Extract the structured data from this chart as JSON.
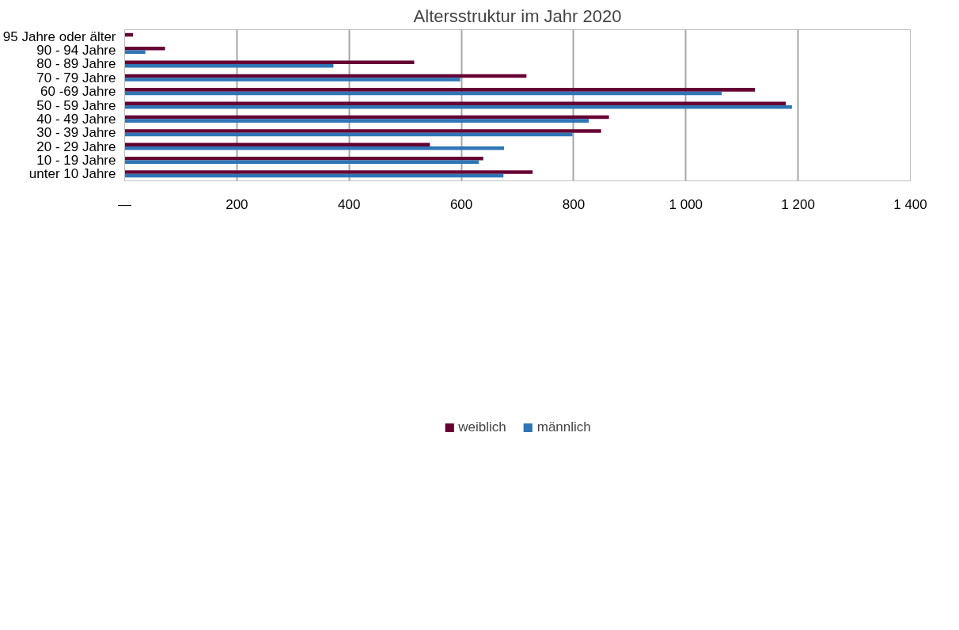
{
  "chart_data": {
    "type": "bar",
    "orientation": "horizontal",
    "title": "Altersstruktur im Jahr 2020",
    "categories": [
      "95 Jahre oder älter",
      "90 - 94 Jahre",
      "80 - 89 Jahre",
      "70 - 79 Jahre",
      "60 -69 Jahre",
      "50 - 59 Jahre",
      "40 - 49 Jahre",
      "30 - 39 Jahre",
      "20 - 29 Jahre",
      "10 - 19 Jahre",
      "unter 10 Jahre"
    ],
    "series": [
      {
        "name": "weiblich",
        "color": "#660033",
        "values": [
          15,
          72,
          516,
          716,
          1123,
          1178,
          863,
          849,
          544,
          639,
          727
        ]
      },
      {
        "name": "männlich",
        "color": "#2e75b6",
        "values": [
          null,
          37,
          372,
          598,
          1064,
          1189,
          827,
          798,
          676,
          631,
          675
        ]
      }
    ],
    "xlim": [
      0,
      1400
    ],
    "xticks": [
      {
        "value": 0,
        "label": "—"
      },
      200,
      400,
      600,
      800,
      {
        "value": 1000,
        "label": "1 000"
      },
      {
        "value": 1200,
        "label": "1 200"
      },
      {
        "value": 1400,
        "label": "1 400"
      }
    ],
    "grid": "x",
    "legend": "bottom"
  }
}
